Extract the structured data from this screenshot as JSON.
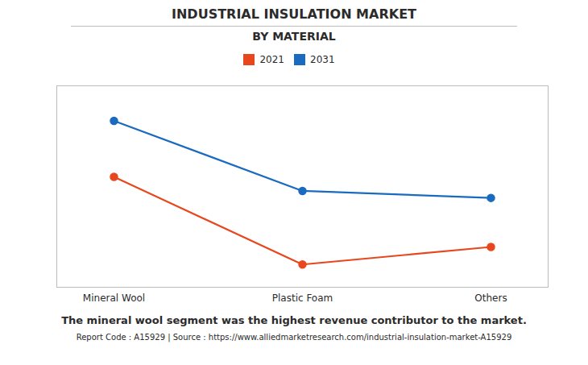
{
  "chart_data": {
    "type": "line",
    "title": "INDUSTRIAL INSULATION MARKET",
    "subtitle": "BY MATERIAL",
    "categories": [
      "Mineral Wool",
      "Plastic Foam",
      "Others"
    ],
    "series": [
      {
        "name": "2021",
        "color": "#e8471e",
        "values": [
          0.58,
          0.08,
          0.18
        ]
      },
      {
        "name": "2031",
        "color": "#1a6bbf",
        "values": [
          0.9,
          0.5,
          0.46
        ]
      }
    ],
    "ylim": [
      -0.05,
      1.1
    ],
    "yticks": [],
    "grid": false,
    "tick_labels": "x",
    "legend": "top",
    "marker": "circle",
    "annotations": [
      "The mineral wool segment was the highest revenue contributor to the market.",
      "Report Code : A15929  |  Source : https://www.alliedmarketresearch.com/industrial-insulation-market-A15929"
    ]
  }
}
